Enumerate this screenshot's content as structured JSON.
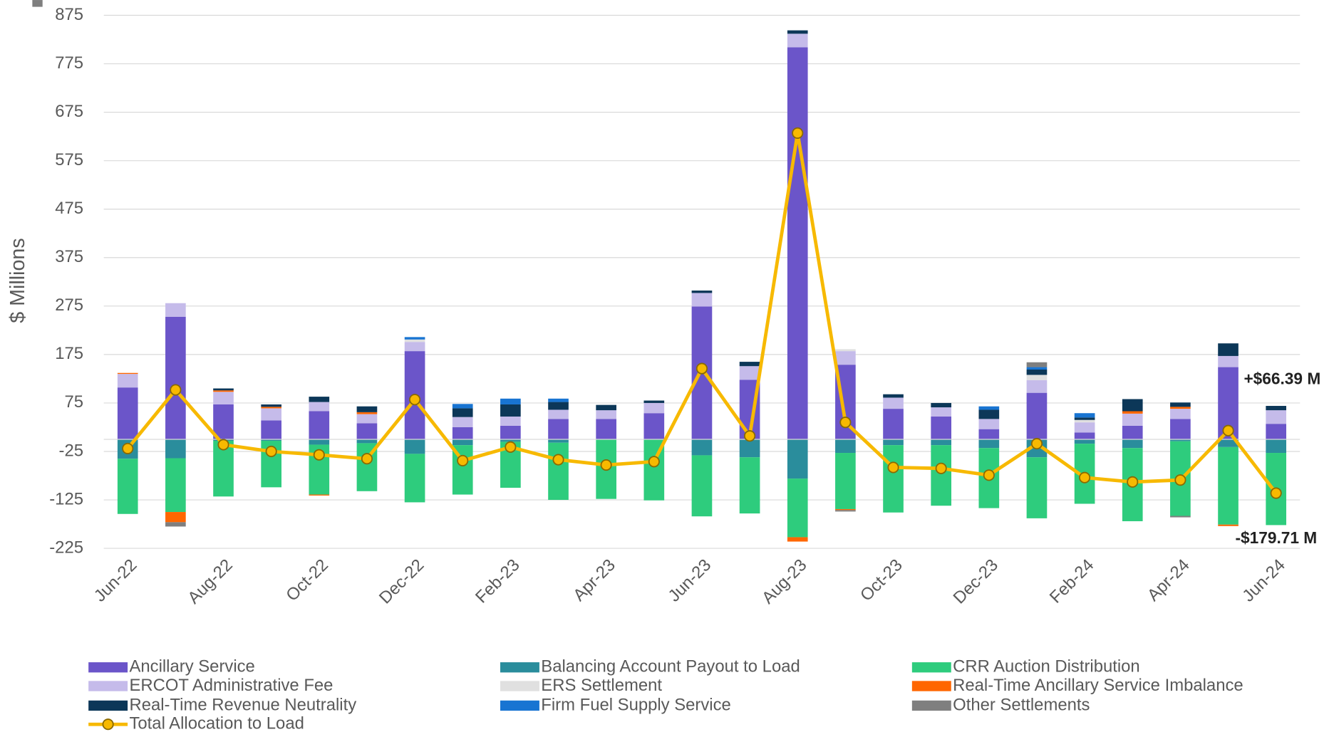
{
  "chart_data": {
    "type": "bar",
    "stacked": true,
    "y_label": "$ Millions",
    "categories": [
      "Jun-22",
      null,
      "Aug-22",
      null,
      "Oct-22",
      null,
      "Dec-22",
      null,
      "Feb-23",
      null,
      "Apr-23",
      null,
      "Jun-23",
      null,
      "Aug-23",
      null,
      "Oct-23",
      null,
      "Dec-23",
      null,
      "Feb-24",
      null,
      "Apr-24",
      null,
      "Jun-24"
    ],
    "ylim": [
      -225,
      875
    ],
    "yticks": [
      -225,
      -125,
      -25,
      75,
      175,
      275,
      375,
      475,
      575,
      675,
      775,
      875
    ],
    "grid": true,
    "annotations": [
      "+$66.39 M",
      "-$179.71 M"
    ],
    "series": [
      {
        "name": "Ancillary Service",
        "color": "#6b55c9",
        "values": [
          107,
          253,
          72,
          39,
          58,
          33,
          182,
          25,
          28,
          42,
          42,
          54,
          274,
          123,
          809,
          154,
          63,
          47,
          21,
          96,
          14,
          28,
          42,
          149,
          32
        ]
      },
      {
        "name": "Balancing Account Payout to Load",
        "color": "#2a8d9c",
        "values": [
          -40,
          -39,
          -3,
          -3,
          -11,
          -8,
          -30,
          -12,
          -5,
          -7,
          0,
          0,
          -33,
          -37,
          -81,
          -28,
          -12,
          -12,
          -18,
          -37,
          -9,
          -18,
          -4,
          -16,
          -28
        ]
      },
      {
        "name": "CRR Auction Distribution",
        "color": "#2ecc7d",
        "values": [
          -114,
          -111,
          -115,
          -96,
          -103,
          -99,
          -100,
          -102,
          -95,
          -118,
          -123,
          -126,
          -126,
          -116,
          -121,
          -116,
          -139,
          -125,
          -124,
          -126,
          -124,
          -151,
          -154,
          -160,
          -149
        ]
      },
      {
        "name": "ERCOT Administrative Fee",
        "color": "#c5bbea",
        "values": [
          28,
          28,
          26,
          25,
          19,
          19,
          19,
          21,
          19,
          19,
          18,
          21,
          28,
          28,
          28,
          28,
          23,
          19,
          21,
          26,
          21,
          25,
          21,
          23,
          28
        ]
      },
      {
        "name": "ERS Settlement",
        "color": "#e0e0e0",
        "values": [
          0,
          0,
          0,
          0,
          0,
          0,
          5,
          0,
          0,
          0,
          0,
          0,
          0,
          0,
          0,
          4,
          0,
          0,
          0,
          11,
          5,
          0,
          0,
          0,
          0
        ]
      },
      {
        "name": "Real-Time Ancillary Service Imbalance",
        "color": "#ff6600",
        "values": [
          2,
          -21,
          3,
          3,
          -2,
          4,
          0,
          0,
          0,
          0,
          0,
          0,
          0,
          0,
          -9,
          -2,
          0,
          0,
          0,
          0,
          0,
          5,
          4,
          -3,
          0
        ]
      },
      {
        "name": "Real-Time Revenue Neutrality",
        "color": "#0c3758",
        "values": [
          0,
          0,
          4,
          5,
          11,
          12,
          0,
          18,
          25,
          16,
          11,
          5,
          5,
          9,
          7,
          0,
          7,
          9,
          19,
          11,
          5,
          25,
          9,
          26,
          9
        ]
      },
      {
        "name": "Firm Fuel Supply Service",
        "color": "#1874d2",
        "values": [
          0,
          0,
          0,
          0,
          0,
          0,
          5,
          9,
          12,
          7,
          0,
          0,
          0,
          0,
          0,
          0,
          0,
          0,
          7,
          5,
          9,
          0,
          0,
          0,
          0
        ]
      },
      {
        "name": "Other Settlements",
        "color": "#7f7f7f",
        "values": [
          0,
          -9,
          0,
          0,
          0,
          0,
          0,
          0,
          0,
          0,
          0,
          0,
          0,
          0,
          0,
          -3,
          0,
          0,
          0,
          10,
          0,
          0,
          -3,
          0,
          0
        ]
      },
      {
        "name": "Total Allocation to Load",
        "type": "line",
        "color": "#f7b900",
        "values": [
          -19,
          102,
          -11,
          -25,
          -32,
          -40,
          82,
          -44,
          -16,
          -42,
          -53,
          -46,
          146,
          7,
          632,
          35,
          -58,
          -60,
          -74,
          -9,
          -79,
          -88,
          -84,
          18,
          -111
        ]
      }
    ]
  }
}
